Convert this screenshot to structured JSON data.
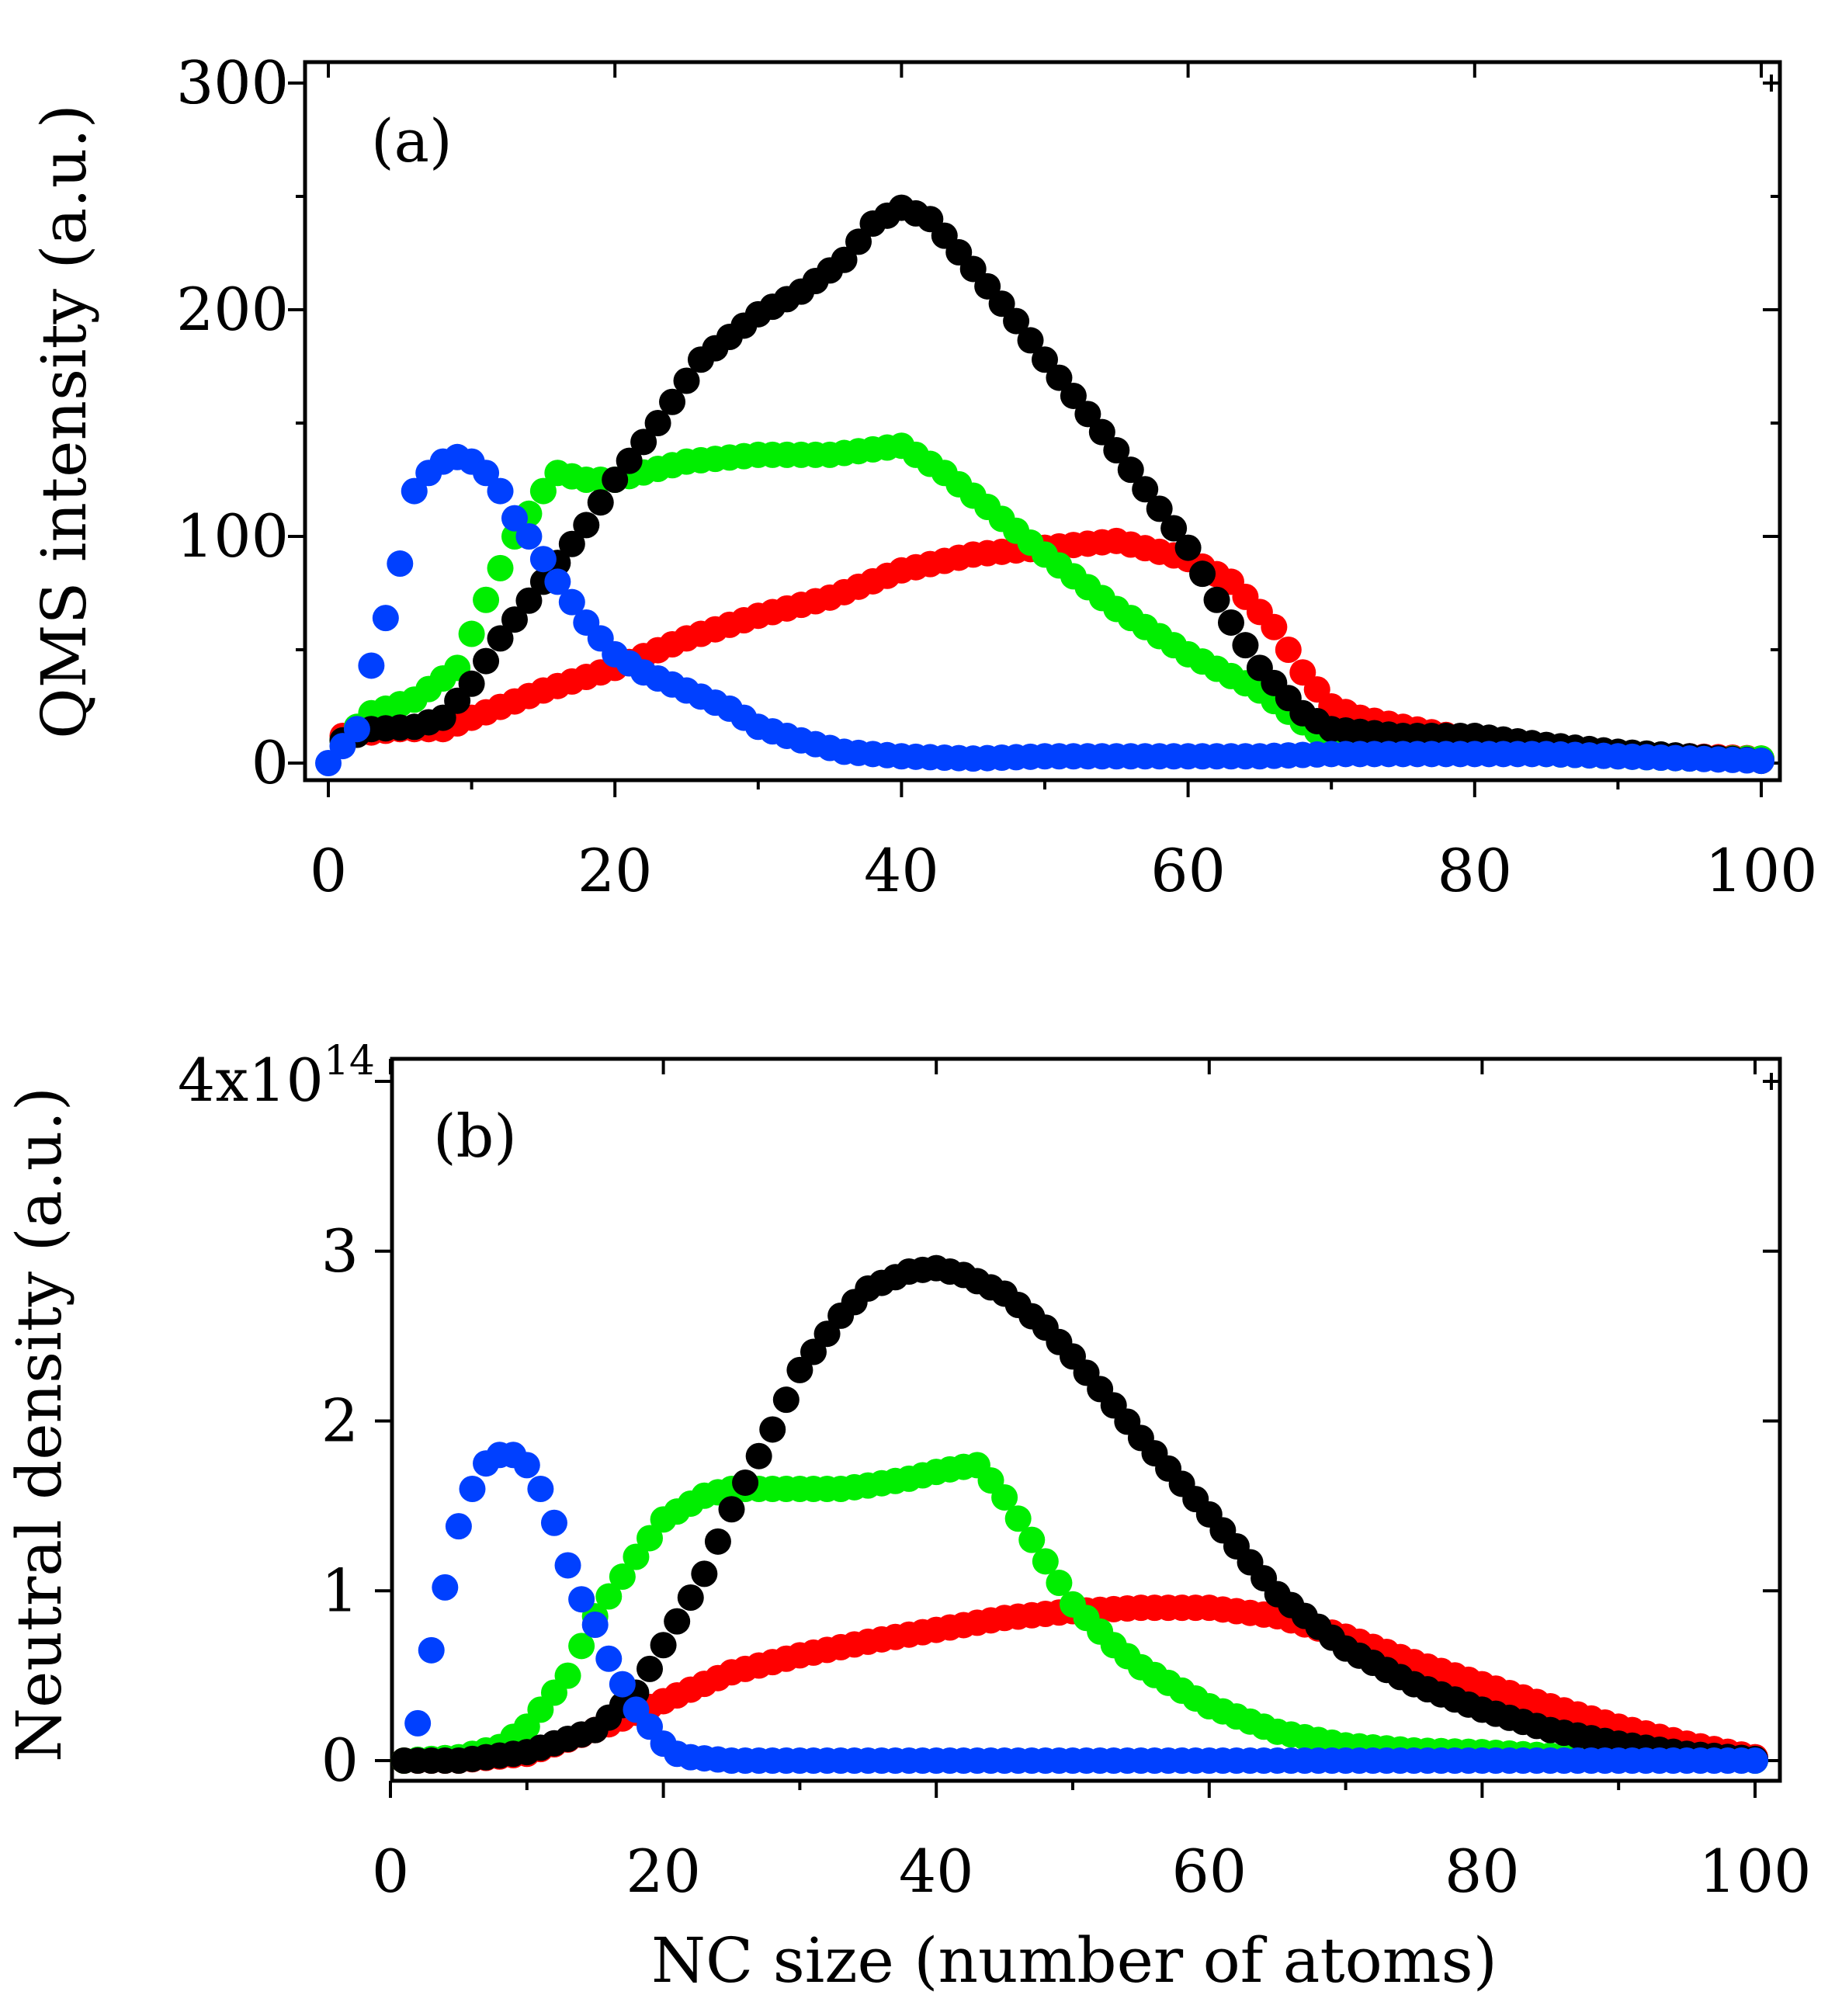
{
  "figure": {
    "xlabel_bottom": "NC size (number of atoms)"
  },
  "chart_data": [
    {
      "type": "scatter",
      "panel": "a",
      "panel_label": "(a)",
      "ylabel": "QMS intensity (a.u.)",
      "xlabel": "",
      "xlim": [
        0,
        100
      ],
      "ylim": [
        0,
        300
      ],
      "xticks": [
        0,
        20,
        40,
        60,
        80,
        100
      ],
      "xtick_labels": [
        "0",
        "20",
        "40",
        "60",
        "80",
        "100"
      ],
      "yticks": [
        0,
        100,
        200,
        300
      ],
      "ytick_labels": [
        "0",
        "100",
        "200",
        "300"
      ],
      "grid": false,
      "series": [
        {
          "name": "red",
          "color": "#ff0000",
          "x": [
            1,
            5,
            8,
            10,
            15,
            20,
            25,
            30,
            35,
            40,
            45,
            50,
            55,
            60,
            63,
            66,
            68,
            70,
            72,
            75,
            80,
            85,
            90,
            95,
            100
          ],
          "y": [
            12,
            15,
            15,
            20,
            32,
            42,
            55,
            65,
            73,
            85,
            92,
            95,
            98,
            90,
            80,
            60,
            40,
            25,
            20,
            16,
            10,
            6,
            4,
            3,
            2
          ]
        },
        {
          "name": "green",
          "color": "#00ee00",
          "x": [
            1,
            3,
            6,
            9,
            11,
            13,
            15,
            16,
            18,
            20,
            25,
            30,
            35,
            40,
            43,
            46,
            50,
            55,
            60,
            65,
            68,
            70,
            75,
            80,
            85,
            90,
            95,
            100
          ],
          "y": [
            10,
            22,
            28,
            42,
            72,
            100,
            120,
            128,
            125,
            125,
            133,
            136,
            136,
            140,
            128,
            113,
            92,
            68,
            48,
            32,
            18,
            10,
            7,
            5,
            4,
            3,
            2,
            2
          ]
        },
        {
          "name": "black",
          "color": "#000000",
          "x": [
            1,
            3,
            6,
            8,
            10,
            12,
            15,
            18,
            20,
            23,
            26,
            30,
            33,
            36,
            38,
            40,
            42,
            45,
            48,
            50,
            55,
            60,
            62,
            65,
            68,
            70,
            75,
            80,
            85,
            90,
            95,
            100
          ],
          "y": [
            10,
            15,
            16,
            20,
            35,
            55,
            80,
            105,
            125,
            150,
            178,
            198,
            208,
            222,
            238,
            245,
            240,
            218,
            195,
            178,
            138,
            95,
            72,
            42,
            22,
            15,
            12,
            12,
            8,
            5,
            3,
            1
          ]
        },
        {
          "name": "blue",
          "color": "#0040ff",
          "x": [
            0,
            2,
            3,
            4,
            5,
            6,
            7,
            8,
            9,
            10,
            11,
            12,
            13,
            14,
            15,
            16,
            18,
            20,
            22,
            25,
            28,
            30,
            33,
            36,
            40,
            45,
            50,
            55,
            60,
            65,
            70,
            75,
            80,
            85,
            90,
            95,
            100
          ],
          "y": [
            0,
            15,
            43,
            64,
            88,
            120,
            128,
            133,
            135,
            133,
            128,
            120,
            108,
            100,
            90,
            80,
            62,
            48,
            40,
            32,
            24,
            16,
            10,
            5,
            3,
            2,
            3,
            3,
            3,
            3,
            4,
            4,
            4,
            4,
            3,
            2,
            1
          ]
        }
      ]
    },
    {
      "type": "scatter",
      "panel": "b",
      "panel_label": "(b)",
      "ylabel": "Neutral density (a.u.)",
      "xlabel": "NC size (number of atoms)",
      "xlim": [
        0,
        100
      ],
      "ylim": [
        0,
        4
      ],
      "xticks": [
        0,
        20,
        40,
        60,
        80,
        100
      ],
      "xtick_labels": [
        "0",
        "20",
        "40",
        "60",
        "80",
        "100"
      ],
      "yticks": [
        0,
        1,
        2,
        3
      ],
      "ytick_labels": [
        "0",
        "1",
        "2",
        "3"
      ],
      "top_tick_label_base": "4x10",
      "top_tick_label_exp": "14",
      "y_scale": "x10^14",
      "grid": false,
      "series": [
        {
          "name": "red",
          "color": "#ff0000",
          "x": [
            1,
            5,
            10,
            15,
            20,
            25,
            30,
            35,
            40,
            45,
            50,
            55,
            60,
            65,
            70,
            75,
            80,
            85,
            90,
            95,
            100
          ],
          "y": [
            0.0,
            0.0,
            0.04,
            0.18,
            0.35,
            0.52,
            0.62,
            0.7,
            0.77,
            0.84,
            0.88,
            0.9,
            0.9,
            0.85,
            0.73,
            0.58,
            0.45,
            0.32,
            0.2,
            0.1,
            0.02
          ]
        },
        {
          "name": "green",
          "color": "#00ee00",
          "x": [
            1,
            5,
            8,
            10,
            13,
            15,
            18,
            20,
            23,
            25,
            28,
            30,
            33,
            35,
            38,
            40,
            42,
            43,
            44,
            45,
            47,
            50,
            53,
            55,
            60,
            65,
            70,
            75,
            80,
            85,
            90,
            95,
            100
          ],
          "y": [
            0.0,
            0.02,
            0.08,
            0.2,
            0.5,
            0.85,
            1.2,
            1.42,
            1.56,
            1.6,
            1.6,
            1.6,
            1.6,
            1.62,
            1.66,
            1.7,
            1.73,
            1.74,
            1.65,
            1.55,
            1.3,
            0.92,
            0.68,
            0.55,
            0.32,
            0.17,
            0.09,
            0.06,
            0.05,
            0.03,
            0.02,
            0.01,
            0.0
          ]
        },
        {
          "name": "black",
          "color": "#000000",
          "x": [
            1,
            5,
            10,
            15,
            18,
            20,
            23,
            25,
            28,
            30,
            33,
            35,
            38,
            40,
            42,
            45,
            48,
            50,
            55,
            60,
            65,
            70,
            75,
            80,
            85,
            90,
            95,
            100
          ],
          "y": [
            0.0,
            0.0,
            0.05,
            0.18,
            0.4,
            0.68,
            1.1,
            1.48,
            1.95,
            2.3,
            2.62,
            2.78,
            2.88,
            2.9,
            2.86,
            2.75,
            2.55,
            2.38,
            1.9,
            1.45,
            0.98,
            0.66,
            0.45,
            0.3,
            0.18,
            0.1,
            0.04,
            0.01
          ]
        },
        {
          "name": "blue",
          "color": "#0040ff",
          "x": [
            2,
            3,
            4,
            5,
            6,
            7,
            8,
            9,
            10,
            11,
            12,
            13,
            14,
            15,
            16,
            17,
            18,
            19,
            20,
            21,
            22,
            25,
            30,
            40,
            50,
            60,
            70,
            80,
            90,
            100
          ],
          "y": [
            0.22,
            0.65,
            1.02,
            1.38,
            1.6,
            1.75,
            1.8,
            1.8,
            1.74,
            1.6,
            1.4,
            1.15,
            0.95,
            0.8,
            0.6,
            0.45,
            0.3,
            0.2,
            0.1,
            0.04,
            0.02,
            0.0,
            0.0,
            0.0,
            0.0,
            0.0,
            0.0,
            0.0,
            0.0,
            0.0
          ]
        }
      ]
    }
  ]
}
